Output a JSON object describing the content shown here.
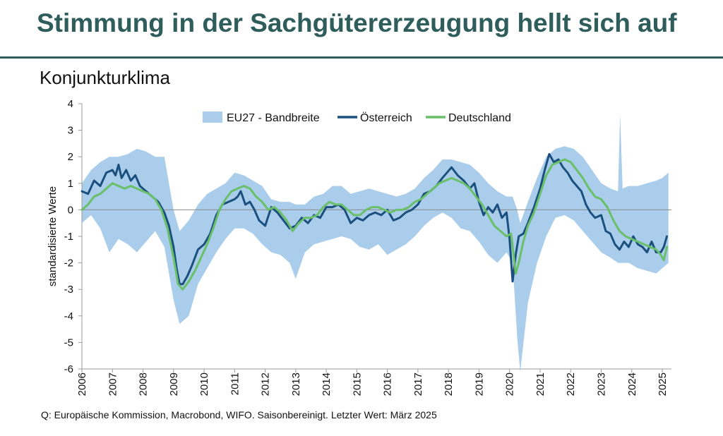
{
  "header": {
    "title": "Stimmung in der Sachgütererzeugung hellt sich auf",
    "subtitle": "Konjunkturklima",
    "source": "Q: Europäische Kommission, Macrobond, WIFO. Saisonbereinigt. Letzter Wert: März 2025"
  },
  "chart_data": {
    "type": "line",
    "title": "Konjunkturklima",
    "ylabel": "standardisierte Werte",
    "xlabel": "",
    "ylim": [
      -6,
      4
    ],
    "xlim": [
      2006.0,
      2025.3
    ],
    "yticks": [
      4,
      3,
      2,
      1,
      0,
      -1,
      -2,
      -3,
      -4,
      -5,
      -6
    ],
    "xticks": [
      "2006",
      "2007",
      "2008",
      "2009",
      "2010",
      "2011",
      "2012",
      "2013",
      "2014",
      "2015",
      "2016",
      "2017",
      "2018",
      "2019",
      "2020",
      "2021",
      "2022",
      "2023",
      "2024",
      "2025"
    ],
    "legend_position": "top-center",
    "grid": false,
    "band": {
      "name": "EU27 - Bandbreite",
      "color": "#a9cdea",
      "x": [
        2006.0,
        2006.3,
        2006.6,
        2006.9,
        2007.2,
        2007.5,
        2007.8,
        2008.1,
        2008.4,
        2008.7,
        2009.0,
        2009.2,
        2009.5,
        2009.8,
        2010.1,
        2010.4,
        2010.7,
        2011.0,
        2011.3,
        2011.6,
        2011.9,
        2012.2,
        2012.5,
        2012.8,
        2013.0,
        2013.3,
        2013.6,
        2013.9,
        2014.2,
        2014.5,
        2014.8,
        2015.1,
        2015.4,
        2015.7,
        2016.0,
        2016.3,
        2016.6,
        2016.9,
        2017.2,
        2017.5,
        2017.8,
        2018.1,
        2018.4,
        2018.7,
        2019.0,
        2019.3,
        2019.6,
        2019.9,
        2020.1,
        2020.25,
        2020.35,
        2020.6,
        2020.9,
        2021.2,
        2021.5,
        2021.8,
        2022.1,
        2022.4,
        2022.7,
        2023.0,
        2023.3,
        2023.55,
        2023.62,
        2023.7,
        2023.9,
        2024.2,
        2024.5,
        2024.8,
        2025.0,
        2025.2
      ],
      "upper": [
        1.0,
        1.5,
        1.8,
        2.0,
        2.0,
        2.1,
        2.3,
        2.2,
        2.0,
        2.0,
        0.0,
        -0.8,
        -0.4,
        0.2,
        0.6,
        0.8,
        1.0,
        1.4,
        1.3,
        1.1,
        0.9,
        0.4,
        0.3,
        0.3,
        0.2,
        0.2,
        0.5,
        0.6,
        0.9,
        0.9,
        0.6,
        0.7,
        0.8,
        0.7,
        0.6,
        0.5,
        0.6,
        0.8,
        1.2,
        1.5,
        1.9,
        1.9,
        1.8,
        1.7,
        1.4,
        1.0,
        0.7,
        0.5,
        0.5,
        0.0,
        -0.5,
        0.3,
        1.2,
        2.0,
        2.3,
        2.4,
        2.3,
        2.0,
        1.5,
        1.0,
        0.8,
        0.7,
        3.6,
        0.8,
        0.9,
        0.9,
        1.0,
        1.1,
        1.2,
        1.4
      ],
      "lower": [
        -0.5,
        -0.2,
        -0.7,
        -1.6,
        -1.1,
        -1.3,
        -1.6,
        -1.2,
        -0.8,
        -1.4,
        -3.4,
        -4.3,
        -4.0,
        -2.8,
        -2.2,
        -1.6,
        -1.1,
        -0.7,
        -0.7,
        -0.9,
        -1.3,
        -1.6,
        -1.7,
        -2.0,
        -2.6,
        -1.6,
        -1.3,
        -1.2,
        -1.1,
        -1.0,
        -1.1,
        -1.4,
        -1.5,
        -1.3,
        -1.7,
        -1.5,
        -1.3,
        -1.0,
        -0.6,
        -0.3,
        -0.1,
        -0.3,
        -0.7,
        -0.8,
        -1.2,
        -1.7,
        -2.0,
        -1.6,
        -2.0,
        -4.8,
        -6.1,
        -3.5,
        -2.0,
        -1.0,
        -0.3,
        -0.2,
        -0.4,
        -0.8,
        -1.2,
        -1.6,
        -1.8,
        -2.0,
        -2.0,
        -2.0,
        -2.0,
        -2.2,
        -2.3,
        -2.4,
        -2.2,
        -2.0
      ]
    },
    "series": [
      {
        "name": "Österreich",
        "color": "#1b4f7e",
        "x": [
          2006.0,
          2006.2,
          2006.4,
          2006.6,
          2006.8,
          2007.0,
          2007.1,
          2007.2,
          2007.3,
          2007.45,
          2007.6,
          2007.75,
          2007.9,
          2008.1,
          2008.3,
          2008.5,
          2008.7,
          2008.85,
          2009.0,
          2009.1,
          2009.2,
          2009.3,
          2009.45,
          2009.6,
          2009.8,
          2010.0,
          2010.2,
          2010.4,
          2010.6,
          2010.8,
          2011.0,
          2011.1,
          2011.2,
          2011.35,
          2011.5,
          2011.65,
          2011.8,
          2012.0,
          2012.2,
          2012.4,
          2012.6,
          2012.8,
          2013.0,
          2013.2,
          2013.4,
          2013.6,
          2013.8,
          2014.0,
          2014.2,
          2014.4,
          2014.6,
          2014.8,
          2015.0,
          2015.2,
          2015.4,
          2015.6,
          2015.8,
          2016.0,
          2016.2,
          2016.4,
          2016.6,
          2016.8,
          2017.0,
          2017.2,
          2017.4,
          2017.6,
          2017.8,
          2017.95,
          2018.1,
          2018.3,
          2018.5,
          2018.7,
          2018.85,
          2019.0,
          2019.15,
          2019.3,
          2019.45,
          2019.6,
          2019.75,
          2019.9,
          2020.0,
          2020.1,
          2020.2,
          2020.3,
          2020.45,
          2020.6,
          2020.8,
          2021.0,
          2021.15,
          2021.3,
          2021.45,
          2021.6,
          2021.75,
          2021.9,
          2022.05,
          2022.2,
          2022.35,
          2022.5,
          2022.65,
          2022.8,
          2023.0,
          2023.15,
          2023.3,
          2023.45,
          2023.6,
          2023.75,
          2023.9,
          2024.05,
          2024.2,
          2024.35,
          2024.5,
          2024.65,
          2024.8,
          2024.95,
          2025.05,
          2025.15
        ],
        "values": [
          0.7,
          0.6,
          1.1,
          0.9,
          1.4,
          1.5,
          1.3,
          1.7,
          1.2,
          1.5,
          1.1,
          1.3,
          0.9,
          0.7,
          0.5,
          0.3,
          -0.1,
          -0.6,
          -1.4,
          -2.2,
          -2.8,
          -2.8,
          -2.5,
          -2.1,
          -1.5,
          -1.3,
          -0.9,
          -0.2,
          0.2,
          0.3,
          0.4,
          0.5,
          0.7,
          0.2,
          0.3,
          0.0,
          -0.4,
          -0.6,
          0.1,
          -0.1,
          -0.4,
          -0.7,
          -0.6,
          -0.3,
          -0.5,
          -0.2,
          -0.3,
          0.1,
          0.1,
          0.2,
          0.0,
          -0.5,
          -0.3,
          -0.4,
          -0.2,
          -0.1,
          -0.2,
          0.0,
          -0.4,
          -0.3,
          -0.1,
          0.0,
          0.2,
          0.6,
          0.7,
          0.9,
          1.2,
          1.4,
          1.6,
          1.3,
          1.1,
          0.8,
          1.0,
          0.3,
          -0.2,
          0.1,
          -0.1,
          0.2,
          -0.3,
          -0.1,
          -1.1,
          -2.7,
          -1.7,
          -1.0,
          -0.9,
          -0.5,
          0.1,
          0.8,
          1.5,
          2.1,
          1.8,
          1.9,
          1.6,
          1.4,
          1.1,
          0.9,
          0.7,
          0.2,
          -0.1,
          -0.3,
          -0.2,
          -0.8,
          -0.9,
          -1.3,
          -1.5,
          -1.2,
          -1.4,
          -1.0,
          -1.3,
          -1.4,
          -1.6,
          -1.2,
          -1.6,
          -1.6,
          -1.4,
          -1.0
        ]
      },
      {
        "name": "Deutschland",
        "color": "#6abf69",
        "x": [
          2006.0,
          2006.2,
          2006.4,
          2006.6,
          2006.8,
          2007.0,
          2007.2,
          2007.4,
          2007.6,
          2007.8,
          2008.0,
          2008.2,
          2008.4,
          2008.6,
          2008.8,
          2009.0,
          2009.15,
          2009.3,
          2009.5,
          2009.7,
          2009.9,
          2010.1,
          2010.3,
          2010.5,
          2010.7,
          2010.9,
          2011.1,
          2011.3,
          2011.5,
          2011.7,
          2011.9,
          2012.1,
          2012.3,
          2012.5,
          2012.7,
          2012.9,
          2013.1,
          2013.3,
          2013.5,
          2013.7,
          2013.9,
          2014.1,
          2014.3,
          2014.5,
          2014.7,
          2014.9,
          2015.1,
          2015.3,
          2015.5,
          2015.7,
          2015.9,
          2016.1,
          2016.3,
          2016.5,
          2016.7,
          2016.9,
          2017.1,
          2017.3,
          2017.5,
          2017.7,
          2017.9,
          2018.1,
          2018.3,
          2018.5,
          2018.7,
          2018.9,
          2019.1,
          2019.3,
          2019.5,
          2019.7,
          2019.9,
          2020.05,
          2020.2,
          2020.3,
          2020.45,
          2020.6,
          2020.8,
          2021.0,
          2021.2,
          2021.4,
          2021.6,
          2021.8,
          2022.0,
          2022.2,
          2022.4,
          2022.6,
          2022.8,
          2023.0,
          2023.2,
          2023.4,
          2023.6,
          2023.8,
          2024.0,
          2024.2,
          2024.4,
          2024.6,
          2024.8,
          2024.95,
          2025.05,
          2025.15
        ],
        "values": [
          0.0,
          0.2,
          0.5,
          0.6,
          0.8,
          1.0,
          0.9,
          0.8,
          0.9,
          0.8,
          0.7,
          0.6,
          0.4,
          0.0,
          -0.7,
          -1.8,
          -2.8,
          -3.0,
          -2.7,
          -2.3,
          -1.8,
          -1.3,
          -0.7,
          0.0,
          0.4,
          0.7,
          0.8,
          0.9,
          0.8,
          0.5,
          0.3,
          0.0,
          0.1,
          -0.1,
          -0.4,
          -0.8,
          -0.5,
          -0.3,
          -0.3,
          -0.2,
          0.1,
          0.3,
          0.2,
          0.2,
          0.0,
          -0.2,
          -0.2,
          0.0,
          0.1,
          0.1,
          0.0,
          -0.1,
          0.0,
          0.0,
          0.1,
          0.3,
          0.4,
          0.6,
          0.8,
          1.0,
          1.1,
          1.2,
          1.1,
          1.0,
          0.8,
          0.5,
          0.2,
          -0.2,
          -0.6,
          -0.8,
          -1.0,
          -0.9,
          -2.4,
          -2.0,
          -1.2,
          -0.6,
          -0.1,
          0.6,
          1.3,
          1.7,
          1.8,
          1.9,
          1.8,
          1.5,
          1.2,
          0.8,
          0.5,
          0.4,
          0.1,
          -0.4,
          -0.8,
          -1.0,
          -1.1,
          -1.2,
          -1.3,
          -1.4,
          -1.5,
          -1.7,
          -1.9,
          -1.4
        ]
      }
    ]
  }
}
